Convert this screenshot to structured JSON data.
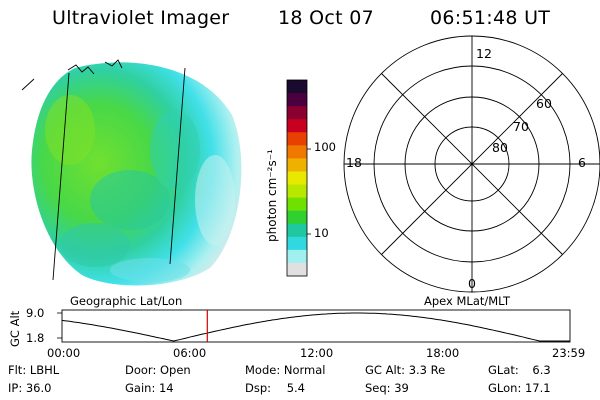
{
  "header": {
    "title": "Ultraviolet Imager",
    "date": "18 Oct 07",
    "time": "06:51:48 UT"
  },
  "colorbar": {
    "unit_label": "photon cm⁻²s⁻¹",
    "ticks": [
      "100",
      "10"
    ],
    "colors": [
      "#1a0a2e",
      "#4a0040",
      "#8a0030",
      "#c80020",
      "#e84000",
      "#f07800",
      "#f0b000",
      "#e8e800",
      "#b8e800",
      "#70e000",
      "#30d030",
      "#20c8a0",
      "#30d8e0",
      "#a0f0f0",
      "#e0e0e0"
    ]
  },
  "polar": {
    "mlt_labels": {
      "top": "12",
      "left": "18",
      "right": "6",
      "bottom": "0"
    },
    "lat_labels": [
      "60",
      "70",
      "80"
    ]
  },
  "panels": {
    "left_caption": "Geographic Lat/Lon",
    "right_caption": "Apex MLat/MLT"
  },
  "altitude_plot": {
    "ylabel": "GC Alt",
    "y_ticks": [
      "9.0",
      "1.8"
    ],
    "x_ticks": [
      "00:00",
      "06:00",
      "12:00",
      "18:00",
      "23:59"
    ],
    "current_time_fraction": 0.286
  },
  "status": {
    "row1": [
      {
        "k": "Flt:",
        "v": "LBHL"
      },
      {
        "k": "Door:",
        "v": "Open"
      },
      {
        "k": "Mode:",
        "v": "Normal"
      },
      {
        "k": "GC Alt:",
        "v": "3.3 Re"
      },
      {
        "k": "GLat:",
        "v": "6.3"
      }
    ],
    "row2": [
      {
        "k": "IP:",
        "v": "36.0"
      },
      {
        "k": "Gain:",
        "v": "14"
      },
      {
        "k": "Dsp:",
        "v": "5.4"
      },
      {
        "k": "Seq:",
        "v": "39"
      },
      {
        "k": "GLon:",
        "v": "17.1"
      }
    ]
  }
}
